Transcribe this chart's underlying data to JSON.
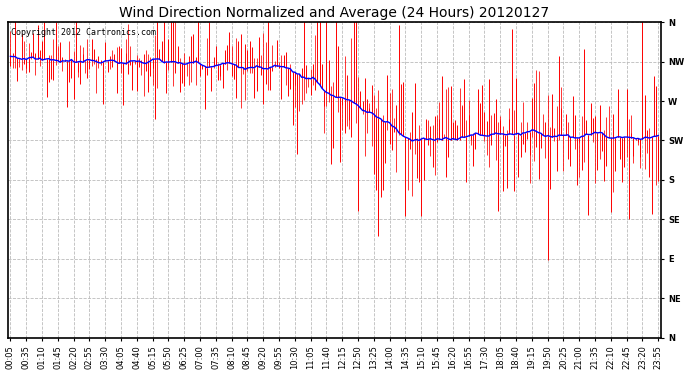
{
  "title": "Wind Direction Normalized and Average (24 Hours) 20120127",
  "copyright_text": "Copyright 2012 Cartronics.com",
  "y_labels": [
    "N",
    "NW",
    "W",
    "SW",
    "S",
    "SE",
    "E",
    "NE",
    "N"
  ],
  "y_values": [
    360,
    315,
    270,
    225,
    180,
    135,
    90,
    45,
    0
  ],
  "y_min": 0,
  "y_max": 360,
  "background_color": "#ffffff",
  "grid_color": "#bbbbbb",
  "red_color": "#ff0000",
  "blue_color": "#0000ff",
  "title_fontsize": 10,
  "tick_fontsize": 6,
  "copyright_fontsize": 6,
  "time_labels": [
    "00:05",
    "00:35",
    "01:10",
    "01:45",
    "02:20",
    "02:55",
    "03:30",
    "04:05",
    "04:40",
    "05:15",
    "05:50",
    "06:25",
    "07:00",
    "07:35",
    "08:10",
    "08:45",
    "09:20",
    "09:55",
    "10:30",
    "11:05",
    "11:40",
    "12:15",
    "12:50",
    "13:25",
    "14:00",
    "14:35",
    "15:10",
    "15:45",
    "16:20",
    "16:55",
    "17:30",
    "18:05",
    "18:40",
    "19:15",
    "19:50",
    "20:25",
    "21:00",
    "21:35",
    "22:10",
    "22:45",
    "23:20",
    "23:55"
  ]
}
